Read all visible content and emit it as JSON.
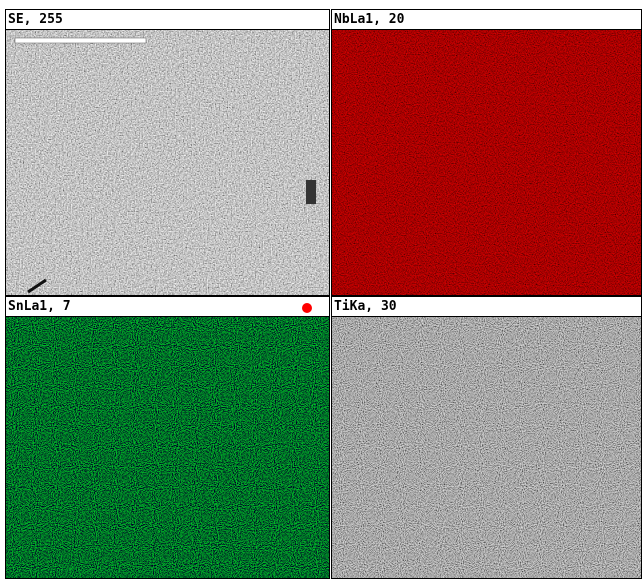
{
  "panels": [
    {
      "label": "SE, 255"
    },
    {
      "label": "NbLa1, 20"
    },
    {
      "label": "SnLa1, 7"
    },
    {
      "label": "TiKa, 30"
    }
  ]
}
